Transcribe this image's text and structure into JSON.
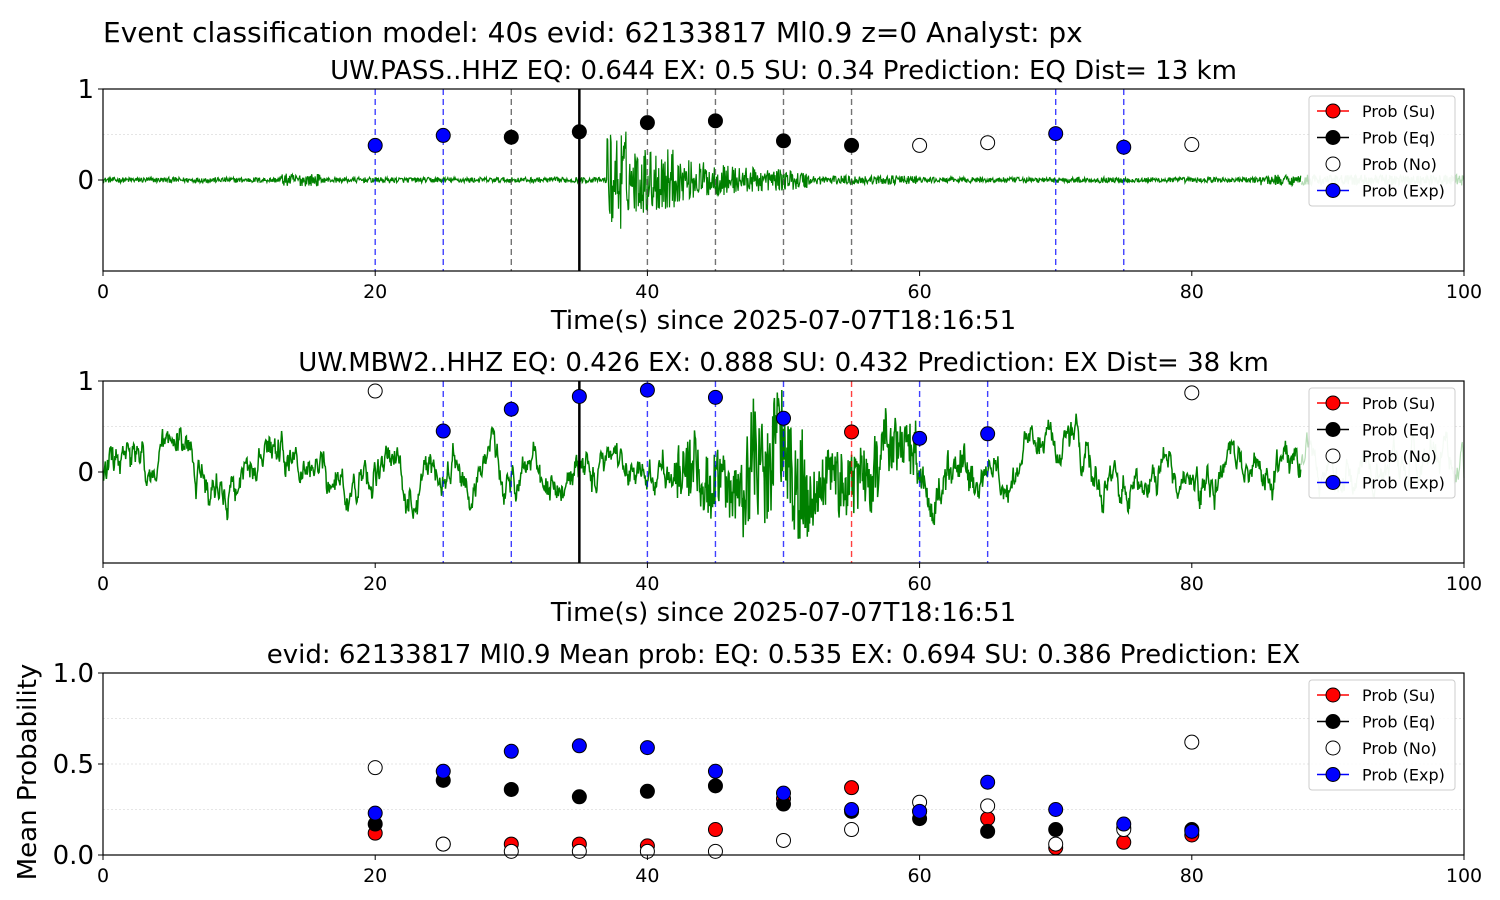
{
  "suptitle": "Event classification model: 40s evid: 62133817 Ml0.9 z=0 Analyst: px",
  "legend_labels": [
    "Prob (Su)",
    "Prob (Eq)",
    "Prob (No)",
    "Prob (Exp)"
  ],
  "colors": {
    "su": "#ff0000",
    "eq": "#000000",
    "no": "#ffffff",
    "exp": "#0000ff",
    "trace": "#008000",
    "trace_faint": "#b5dcb5"
  },
  "chart_data": [
    {
      "type": "scatter",
      "title": "UW.PASS..HHZ   EQ: 0.644  EX: 0.5  SU: 0.34   Prediction: EQ    Dist= 13 km",
      "xlabel": "Time(s) since 2025-07-07T18:16:51",
      "ylabel": "",
      "xlim": [
        0,
        100
      ],
      "ylim": [
        -1,
        1
      ],
      "xticks": [
        "0",
        "20",
        "40",
        "60",
        "80",
        "100"
      ],
      "yticks": [
        "0",
        "1"
      ],
      "gridlines_y": [
        0.5,
        1
      ],
      "legend_position": "upper-right",
      "pick_time": 35,
      "vlines": [
        {
          "x": 20,
          "class": "exp"
        },
        {
          "x": 25,
          "class": "exp"
        },
        {
          "x": 30,
          "class": "eq"
        },
        {
          "x": 40,
          "class": "eq"
        },
        {
          "x": 45,
          "class": "eq"
        },
        {
          "x": 50,
          "class": "eq"
        },
        {
          "x": 55,
          "class": "eq"
        },
        {
          "x": 70,
          "class": "exp"
        },
        {
          "x": 75,
          "class": "exp"
        }
      ],
      "points": [
        {
          "x": 20,
          "y": 0.38,
          "class": "exp"
        },
        {
          "x": 25,
          "y": 0.49,
          "class": "exp"
        },
        {
          "x": 30,
          "y": 0.47,
          "class": "eq"
        },
        {
          "x": 35,
          "y": 0.53,
          "class": "eq"
        },
        {
          "x": 40,
          "y": 0.63,
          "class": "eq"
        },
        {
          "x": 45,
          "y": 0.65,
          "class": "eq"
        },
        {
          "x": 50,
          "y": 0.43,
          "class": "eq"
        },
        {
          "x": 55,
          "y": 0.38,
          "class": "eq"
        },
        {
          "x": 60,
          "y": 0.38,
          "class": "no"
        },
        {
          "x": 65,
          "y": 0.41,
          "class": "no"
        },
        {
          "x": 70,
          "y": 0.51,
          "class": "exp"
        },
        {
          "x": 75,
          "y": 0.36,
          "class": "exp"
        },
        {
          "x": 80,
          "y": 0.39,
          "class": "no"
        }
      ]
    },
    {
      "type": "scatter",
      "title": "UW.MBW2..HHZ   EQ: 0.426  EX: 0.888  SU: 0.432   Prediction: EX    Dist= 38 km",
      "xlabel": "Time(s) since 2025-07-07T18:16:51",
      "ylabel": "",
      "xlim": [
        0,
        100
      ],
      "ylim": [
        -1,
        1
      ],
      "xticks": [
        "0",
        "20",
        "40",
        "60",
        "80",
        "100"
      ],
      "yticks": [
        "0",
        "1"
      ],
      "gridlines_y": [
        0.5,
        1
      ],
      "legend_position": "upper-right",
      "pick_time": 35,
      "vlines": [
        {
          "x": 25,
          "class": "exp"
        },
        {
          "x": 30,
          "class": "exp"
        },
        {
          "x": 40,
          "class": "exp"
        },
        {
          "x": 45,
          "class": "exp"
        },
        {
          "x": 50,
          "class": "exp"
        },
        {
          "x": 55,
          "class": "su"
        },
        {
          "x": 60,
          "class": "exp"
        },
        {
          "x": 65,
          "class": "exp"
        }
      ],
      "points": [
        {
          "x": 20,
          "y": 0.89,
          "class": "no"
        },
        {
          "x": 25,
          "y": 0.45,
          "class": "exp"
        },
        {
          "x": 30,
          "y": 0.69,
          "class": "exp"
        },
        {
          "x": 35,
          "y": 0.83,
          "class": "exp"
        },
        {
          "x": 40,
          "y": 0.9,
          "class": "exp"
        },
        {
          "x": 45,
          "y": 0.82,
          "class": "exp"
        },
        {
          "x": 50,
          "y": 0.59,
          "class": "exp"
        },
        {
          "x": 55,
          "y": 0.44,
          "class": "su"
        },
        {
          "x": 60,
          "y": 0.37,
          "class": "exp"
        },
        {
          "x": 65,
          "y": 0.42,
          "class": "exp"
        },
        {
          "x": 80,
          "y": 0.87,
          "class": "no"
        }
      ]
    },
    {
      "type": "scatter",
      "title": "evid: 62133817  Ml0.9   Mean prob:   EQ: 0.535  EX: 0.694  SU: 0.386   Prediction: EX",
      "xlabel": "",
      "ylabel": "Mean Probability",
      "xlim": [
        0,
        100
      ],
      "ylim": [
        0,
        1
      ],
      "xticks": [
        "0",
        "20",
        "40",
        "60",
        "80",
        "100"
      ],
      "yticks": [
        "0.0",
        "0.5",
        "1.0"
      ],
      "gridlines_y": [
        0.25,
        0.5,
        0.75,
        1
      ],
      "legend_position": "upper-right",
      "series": [
        {
          "name": "Prob (Su)",
          "class": "su",
          "x": [
            20,
            25,
            30,
            35,
            40,
            45,
            50,
            55,
            60,
            65,
            70,
            75,
            80
          ],
          "values": [
            0.12,
            0.06,
            0.06,
            0.06,
            0.05,
            0.14,
            0.31,
            0.37,
            0.24,
            0.2,
            0.04,
            0.07,
            0.11
          ]
        },
        {
          "name": "Prob (Eq)",
          "class": "eq",
          "x": [
            20,
            25,
            30,
            35,
            40,
            45,
            50,
            55,
            60,
            65,
            70,
            75,
            80
          ],
          "values": [
            0.17,
            0.41,
            0.36,
            0.32,
            0.35,
            0.38,
            0.28,
            0.24,
            0.2,
            0.13,
            0.14,
            0.15,
            0.14
          ]
        },
        {
          "name": "Prob (No)",
          "class": "no",
          "x": [
            20,
            25,
            30,
            35,
            40,
            45,
            50,
            55,
            60,
            65,
            70,
            75,
            80
          ],
          "values": [
            0.48,
            0.06,
            0.02,
            0.02,
            0.02,
            0.02,
            0.08,
            0.14,
            0.29,
            0.27,
            0.06,
            0.14,
            0.62
          ]
        },
        {
          "name": "Prob (Exp)",
          "class": "exp",
          "x": [
            20,
            25,
            30,
            35,
            40,
            45,
            50,
            55,
            60,
            65,
            70,
            75,
            80
          ],
          "values": [
            0.23,
            0.46,
            0.57,
            0.6,
            0.59,
            0.46,
            0.34,
            0.25,
            0.24,
            0.4,
            0.25,
            0.17,
            0.13
          ]
        }
      ]
    }
  ]
}
